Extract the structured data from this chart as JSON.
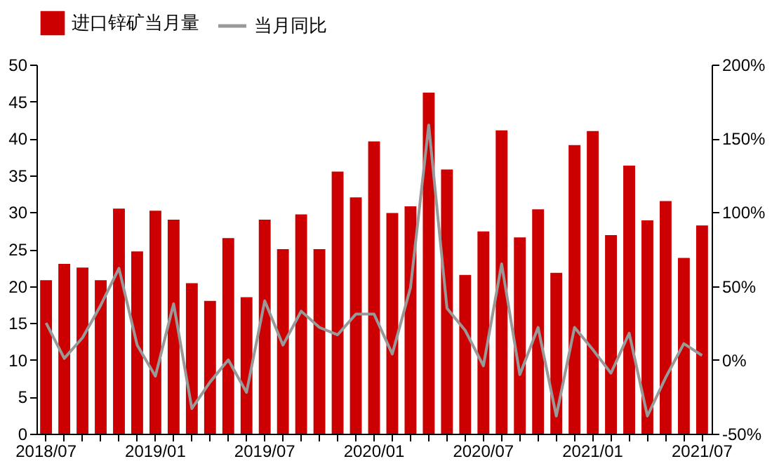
{
  "chart_data": {
    "type": "bar",
    "categories": [
      "2018/07",
      null,
      null,
      null,
      null,
      null,
      "2019/01",
      null,
      null,
      null,
      null,
      null,
      "2019/07",
      null,
      null,
      null,
      null,
      null,
      "2020/01",
      null,
      null,
      null,
      null,
      null,
      "2020/07",
      null,
      null,
      null,
      null,
      null,
      "2021/01",
      null,
      null,
      null,
      null,
      null,
      "2021/07"
    ],
    "series": [
      {
        "name": "进口锌矿当月量",
        "color": "#cc0000",
        "values": [
          20.8,
          23,
          22.5,
          20.8,
          30.5,
          24.7,
          30.2,
          29,
          20.4,
          18,
          26.5,
          18.5,
          29,
          25,
          29.7,
          25,
          35.5,
          32,
          39.6,
          29.9,
          30.8,
          46.2,
          35.8,
          21.5,
          27.4,
          41.1,
          26.6,
          30.4,
          21.8,
          39.1,
          41,
          26.9,
          36.3,
          28.9,
          31.5,
          23.8,
          28.2
        ]
      },
      {
        "name": "当月同比",
        "type": "line",
        "axis": "y2",
        "color": "#999999",
        "values": [
          25,
          1,
          15,
          37,
          62,
          10,
          -11,
          38,
          -33,
          -15,
          0,
          -22,
          40,
          10,
          33,
          22,
          17,
          31,
          31,
          4,
          49,
          159,
          35,
          20,
          -4,
          65,
          -10,
          22,
          -38,
          22,
          7,
          -9,
          18,
          -38,
          -12,
          11,
          3
        ]
      }
    ],
    "ylim": [
      0,
      50
    ],
    "yticks": [
      0,
      5,
      10,
      15,
      20,
      25,
      30,
      35,
      40,
      45,
      50
    ],
    "y2lim": [
      -50,
      200
    ],
    "y2ticks": [
      {
        "value": -50,
        "label": "-50%"
      },
      {
        "value": 0,
        "label": "0%"
      },
      {
        "value": 50,
        "label": "50%"
      },
      {
        "value": 100,
        "label": "100%"
      },
      {
        "value": 150,
        "label": "150%"
      },
      {
        "value": 200,
        "label": "200%"
      }
    ],
    "legend": "top",
    "grid": false
  }
}
